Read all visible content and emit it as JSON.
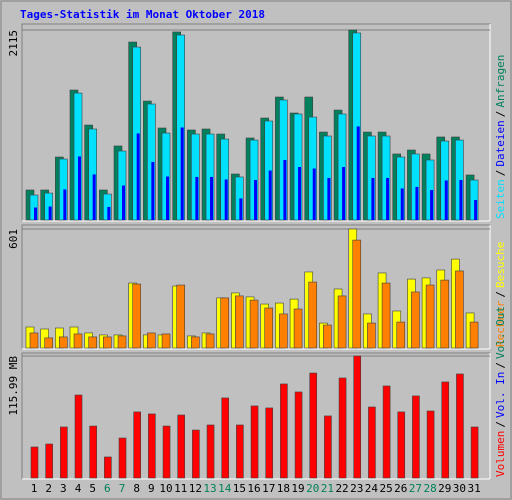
{
  "chart_data": {
    "type": "bar",
    "title": "Tages-Statistik im Monat Oktober 2018",
    "categories": [
      "1",
      "2",
      "3",
      "4",
      "5",
      "6",
      "7",
      "8",
      "9",
      "10",
      "11",
      "12",
      "13",
      "14",
      "15",
      "16",
      "17",
      "18",
      "19",
      "20",
      "21",
      "22",
      "23",
      "24",
      "25",
      "26",
      "27",
      "28",
      "29",
      "30",
      "31"
    ],
    "highlight_categories": [
      "6",
      "7",
      "13",
      "14",
      "20",
      "21",
      "27",
      "28"
    ],
    "highlight_color": "#00805c",
    "legend_separator": "/",
    "panels": [
      {
        "ylim": [
          0,
          2115
        ],
        "yticks": [
          2115
        ],
        "series": [
          {
            "name": "Anfragen",
            "color": "#00805c",
            "values": [
              334,
              334,
              701,
              1447,
              1057,
              334,
              824,
              1981,
              1324,
              1024,
              2093,
              1002,
              1013,
              957,
              512,
              913,
              1135,
              1369,
              1191,
              1369,
              979,
              1224,
              2115,
              979,
              979,
              735,
              779,
              735,
              924,
              924,
              501
            ]
          },
          {
            "name": "Dateien",
            "color": "#0000ff",
            "values": [
              139,
              150,
              340,
              707,
              507,
              145,
              384,
              963,
              646,
              484,
              1030,
              479,
              479,
              451,
              240,
              445,
              551,
              668,
              590,
              573,
              468,
              590,
              1041,
              468,
              468,
              351,
              368,
              334,
              440,
              445,
              223
            ]
          },
          {
            "name": "Seiten",
            "color": "#00e0ff",
            "values": [
              278,
              300,
              679,
              1413,
              1013,
              289,
              768,
              1925,
              1291,
              968,
              2059,
              957,
              957,
              901,
              479,
              890,
              1102,
              1336,
              1180,
              1146,
              935,
              1180,
              2082,
              935,
              935,
              701,
              735,
              668,
              879,
              890,
              445
            ]
          }
        ]
      },
      {
        "ylim": [
          0,
          601
        ],
        "yticks": [
          601
        ],
        "series": [
          {
            "name": "Besuche",
            "color": "#ffff00",
            "values": [
              106,
              96,
              101,
              106,
              76,
              66,
              66,
              328,
              66,
              66,
              313,
              61,
              76,
              253,
              278,
              258,
              222,
              227,
              247,
              384,
              126,
              298,
              601,
              172,
              379,
              187,
              348,
              354,
              394,
              449,
              177
            ]
          },
          {
            "name": "Rechner",
            "color": "#ff8000",
            "values": [
              76,
              51,
              56,
              71,
              56,
              56,
              61,
              323,
              76,
              71,
              318,
              56,
              71,
              253,
              263,
              242,
              202,
              172,
              197,
              333,
              116,
              263,
              545,
              126,
              328,
              131,
              283,
              318,
              343,
              389,
              131
            ]
          }
        ]
      },
      {
        "ylim": [
          0,
          115.99
        ],
        "yticks": [
          {
            "value": 115.99,
            "label": "115.99 MB"
          }
        ],
        "series": [
          {
            "name": "Volumen",
            "color": "#ff0000",
            "values": [
              29.5,
              32.3,
              48.5,
              78.9,
              49.4,
              20,
              38,
              62.8,
              60.9,
              49.4,
              59.9,
              45.6,
              50.4,
              76.1,
              50.4,
              68.5,
              66.6,
              89.4,
              81.8,
              99.8,
              59,
              95.1,
              115.99,
              67.5,
              87.5,
              62.8,
              78,
              63.7,
              91.3,
              98.9,
              48.5
            ]
          }
        ],
        "legend_extra": [
          {
            "name": "Vol. In",
            "color": "#0000ff"
          },
          {
            "name": "Vol. Out",
            "color": "#00805c"
          }
        ]
      }
    ]
  }
}
